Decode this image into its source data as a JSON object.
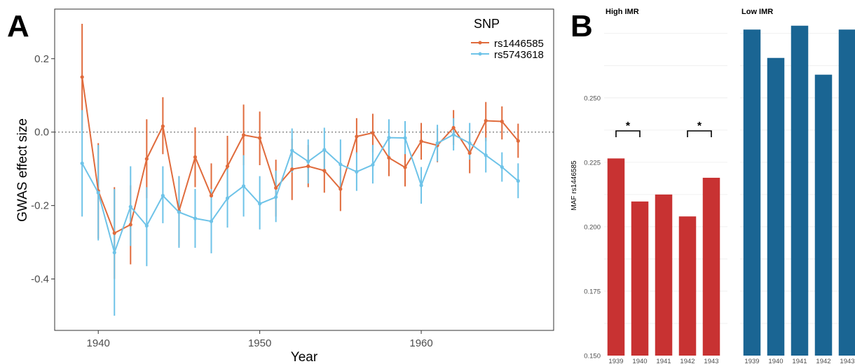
{
  "panel_a": {
    "letter": "A",
    "xlabel": "Year",
    "ylabel": "GWAS effect size",
    "legend_title": "SNP",
    "x_ticks": [
      "1940",
      "1950",
      "1960"
    ],
    "y_ticks": [
      "0.2",
      "0.0",
      "-0.2",
      "-0.4"
    ]
  },
  "panel_b": {
    "letter": "B",
    "ylabel": "MAF rs1446585",
    "y_ticks": [
      "0.150",
      "0.175",
      "0.200",
      "0.225",
      "0.250"
    ],
    "facet_titles": [
      "High IMR",
      "Low IMR"
    ],
    "sig_marks": [
      "*",
      "*"
    ]
  },
  "chart_data": [
    {
      "type": "line",
      "xlabel": "Year",
      "ylabel": "GWAS effect size",
      "xlim": [
        1937.3,
        1968.2
      ],
      "ylim": [
        -0.54,
        0.335
      ],
      "x_ticks": [
        1940,
        1950,
        1960
      ],
      "y_ticks": [
        0.2,
        0.0,
        -0.2,
        -0.4
      ],
      "reference_line": 0.0,
      "grid": false,
      "legend_position": "top-right",
      "x": [
        1939,
        1940,
        1941,
        1942,
        1943,
        1944,
        1945,
        1946,
        1947,
        1948,
        1949,
        1950,
        1951,
        1952,
        1953,
        1954,
        1955,
        1956,
        1957,
        1958,
        1959,
        1960,
        1961,
        1962,
        1963,
        1964,
        1965,
        1966
      ],
      "series": [
        {
          "name": "rs1446585",
          "color": "#e06b3c",
          "values": [
            0.15,
            -0.16,
            -0.275,
            -0.252,
            -0.073,
            0.016,
            -0.215,
            -0.068,
            -0.173,
            -0.093,
            -0.008,
            -0.016,
            -0.152,
            -0.101,
            -0.093,
            -0.105,
            -0.155,
            -0.012,
            -0.002,
            -0.07,
            -0.096,
            -0.025,
            -0.036,
            0.012,
            -0.057,
            0.031,
            0.029,
            -0.024
          ],
          "lower": [
            0.005,
            -0.29,
            -0.4,
            -0.36,
            -0.18,
            -0.06,
            -0.31,
            -0.15,
            -0.265,
            -0.18,
            -0.09,
            -0.09,
            -0.23,
            -0.185,
            -0.15,
            -0.165,
            -0.215,
            -0.06,
            -0.055,
            -0.12,
            -0.148,
            -0.075,
            -0.082,
            -0.035,
            -0.112,
            -0.025,
            -0.02,
            -0.07
          ],
          "upper": [
            0.295,
            -0.03,
            -0.15,
            -0.145,
            0.035,
            0.095,
            -0.12,
            0.013,
            -0.085,
            -0.01,
            0.075,
            0.056,
            -0.075,
            -0.018,
            -0.035,
            -0.045,
            -0.095,
            0.038,
            0.05,
            -0.02,
            -0.045,
            0.025,
            0.01,
            0.06,
            -0.003,
            0.082,
            0.07,
            0.023
          ]
        },
        {
          "name": "rs5743618",
          "color": "#6ec3e8",
          "values": [
            -0.085,
            -0.165,
            -0.328,
            -0.203,
            -0.255,
            -0.173,
            -0.218,
            -0.235,
            -0.243,
            -0.18,
            -0.147,
            -0.195,
            -0.177,
            -0.05,
            -0.08,
            -0.048,
            -0.088,
            -0.108,
            -0.089,
            -0.015,
            -0.016,
            -0.145,
            -0.03,
            -0.007,
            -0.03,
            -0.063,
            -0.095,
            -0.133
          ],
          "lower": [
            -0.23,
            -0.295,
            -0.5,
            -0.31,
            -0.365,
            -0.248,
            -0.315,
            -0.315,
            -0.33,
            -0.26,
            -0.23,
            -0.265,
            -0.245,
            -0.11,
            -0.14,
            -0.105,
            -0.155,
            -0.16,
            -0.14,
            -0.065,
            -0.06,
            -0.195,
            -0.08,
            -0.05,
            -0.075,
            -0.11,
            -0.135,
            -0.18
          ],
          "upper": [
            0.06,
            -0.035,
            -0.155,
            -0.093,
            -0.15,
            -0.093,
            -0.12,
            -0.155,
            -0.155,
            -0.1,
            -0.063,
            -0.12,
            -0.105,
            0.01,
            -0.02,
            0.012,
            -0.02,
            -0.055,
            -0.035,
            0.035,
            0.03,
            -0.095,
            0.02,
            0.038,
            0.025,
            -0.015,
            -0.055,
            -0.085
          ]
        }
      ]
    },
    {
      "type": "bar",
      "ylabel": "MAF rs1446585",
      "ylim": [
        0.15,
        0.282
      ],
      "y_ticks": [
        0.15,
        0.175,
        0.2,
        0.225,
        0.25
      ],
      "grid": true,
      "facets": [
        {
          "title": "High IMR",
          "color": "#c83232",
          "categories": [
            "1939",
            "1940",
            "1941",
            "1942",
            "1943"
          ],
          "values": [
            0.2265,
            0.2098,
            0.2125,
            0.204,
            0.219
          ],
          "significance": [
            {
              "from": "1939",
              "to": "1940",
              "label": "*"
            },
            {
              "from": "1942",
              "to": "1943",
              "label": "*"
            }
          ]
        },
        {
          "title": "Low IMR",
          "color": "#1a6593",
          "categories": [
            "1939",
            "1940",
            "1941",
            "1942",
            "1943"
          ],
          "values": [
            0.2765,
            0.2655,
            0.278,
            0.259,
            0.2765
          ]
        }
      ]
    }
  ]
}
